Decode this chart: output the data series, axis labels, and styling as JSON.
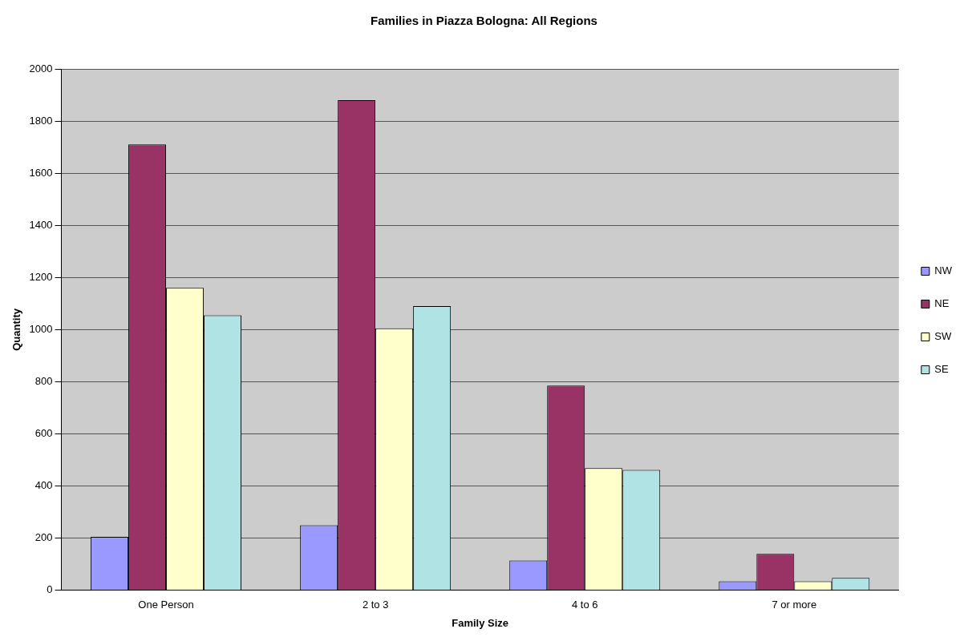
{
  "chart_data": {
    "type": "bar",
    "title": "Families in Piazza Bologna: All Regions",
    "xlabel": "Family Size",
    "ylabel": "Quantity",
    "categories": [
      "One Person",
      "2 to 3",
      "4 to 6",
      "7 or more"
    ],
    "series": [
      {
        "name": "NW",
        "color": "#9999ff",
        "values": [
          205,
          250,
          115,
          35
        ]
      },
      {
        "name": "NE",
        "color": "#993366",
        "values": [
          1710,
          1880,
          785,
          140
        ]
      },
      {
        "name": "SW",
        "color": "#ffffcc",
        "values": [
          1160,
          1005,
          469,
          35
        ]
      },
      {
        "name": "SE",
        "color": "#b0e4e4",
        "values": [
          1055,
          1090,
          462,
          48
        ]
      }
    ],
    "ylim": [
      0,
      2000
    ],
    "yticks": [
      0,
      200,
      400,
      600,
      800,
      1000,
      1200,
      1400,
      1600,
      1800,
      2000
    ],
    "grid": "y",
    "legend": "right"
  }
}
